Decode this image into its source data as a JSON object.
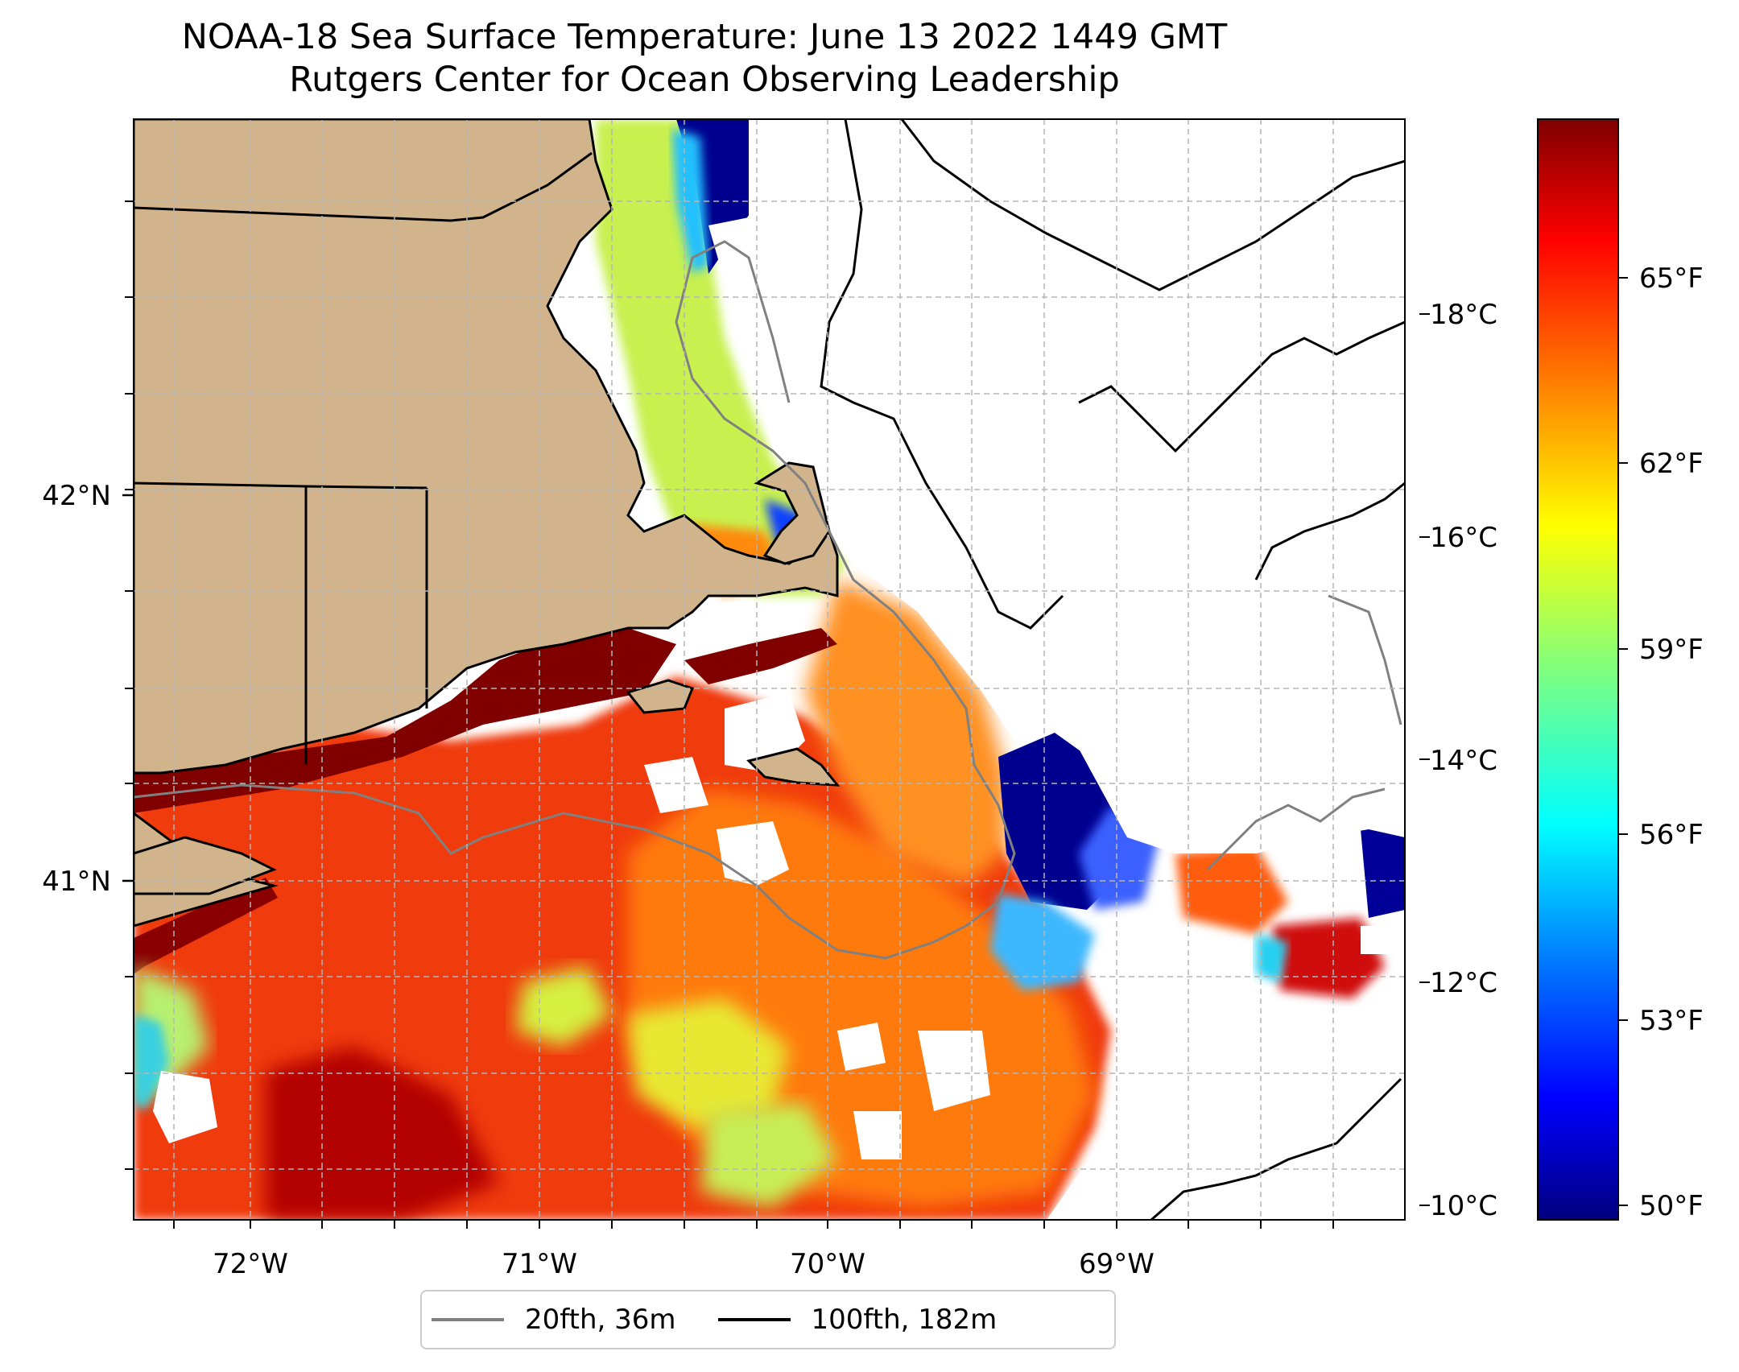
{
  "title": {
    "line1": "NOAA-18 Sea Surface Temperature: June 13 2022 1449 GMT",
    "line2": "Rutgers Center for Ocean Observing Leadership"
  },
  "map": {
    "longitude_labels": [
      "72°W",
      "71°W",
      "70°W",
      "69°W"
    ],
    "latitude_labels": [
      "42°N",
      "41°N"
    ],
    "land_color": "#D2B48C",
    "no_data_color": "#ffffff",
    "grid": true,
    "grid_style": "dashed light gray"
  },
  "colorbar": {
    "colormap": "jet",
    "celsius_labels": [
      "18°C",
      "16°C",
      "14°C",
      "12°C",
      "10°C"
    ],
    "fahrenheit_labels": [
      "65°F",
      "62°F",
      "59°F",
      "56°F",
      "53°F",
      "50°F"
    ],
    "colors": [
      "#00007f",
      "#0000ff",
      "#007fff",
      "#00ffff",
      "#7fff7f",
      "#ffff00",
      "#ff7f00",
      "#ff0000",
      "#7f0000"
    ]
  },
  "legend": {
    "items": [
      {
        "label": "20fth, 36m",
        "color": "#808080"
      },
      {
        "label": "100fth, 182m",
        "color": "#000000"
      }
    ]
  }
}
